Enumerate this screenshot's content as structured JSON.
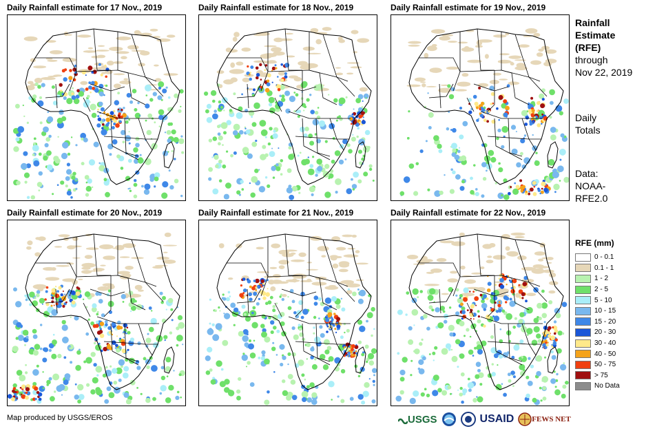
{
  "panels": [
    {
      "title": "Daily Rainfall estimate for 17 Nov., 2019"
    },
    {
      "title": "Daily Rainfall estimate for 18 Nov., 2019"
    },
    {
      "title": "Daily Rainfall estimate for 19 Nov., 2019"
    },
    {
      "title": "Daily Rainfall estimate for 20 Nov., 2019"
    },
    {
      "title": "Daily Rainfall estimate for 21 Nov., 2019"
    },
    {
      "title": "Daily Rainfall estimate for 22 Nov., 2019"
    }
  ],
  "side": {
    "title_l1": "Rainfall",
    "title_l2": "Estimate",
    "title_l3": "(RFE)",
    "through": "through",
    "date": "Nov 22, 2019",
    "daily": "Daily",
    "totals": "Totals",
    "data_label": "Data:",
    "data_src1": "NOAA-",
    "data_src2": "RFE2.0"
  },
  "legend": {
    "title": "RFE (mm)",
    "items": [
      {
        "label": "0 - 0.1",
        "color": "#ffffff"
      },
      {
        "label": "0.1 - 1",
        "color": "#e6d7b8"
      },
      {
        "label": "1 - 2",
        "color": "#b8f2b0"
      },
      {
        "label": "2 - 5",
        "color": "#6fe06a"
      },
      {
        "label": "5 - 10",
        "color": "#aaeef8"
      },
      {
        "label": "10 - 15",
        "color": "#79b8ee"
      },
      {
        "label": "15 - 20",
        "color": "#3f88e8"
      },
      {
        "label": "20 - 30",
        "color": "#1a56d8"
      },
      {
        "label": "30 - 40",
        "color": "#ffe98a"
      },
      {
        "label": "40 - 50",
        "color": "#f5a31a"
      },
      {
        "label": "50 - 75",
        "color": "#f04010"
      },
      {
        "label": "> 75",
        "color": "#a01010"
      },
      {
        "label": "No Data",
        "color": "#8c8c8c"
      }
    ]
  },
  "credit": "Map produced by USGS/EROS",
  "logos": {
    "usgs": "USGS",
    "usaid": "USAID",
    "fewsnet": "FEWS NET"
  }
}
